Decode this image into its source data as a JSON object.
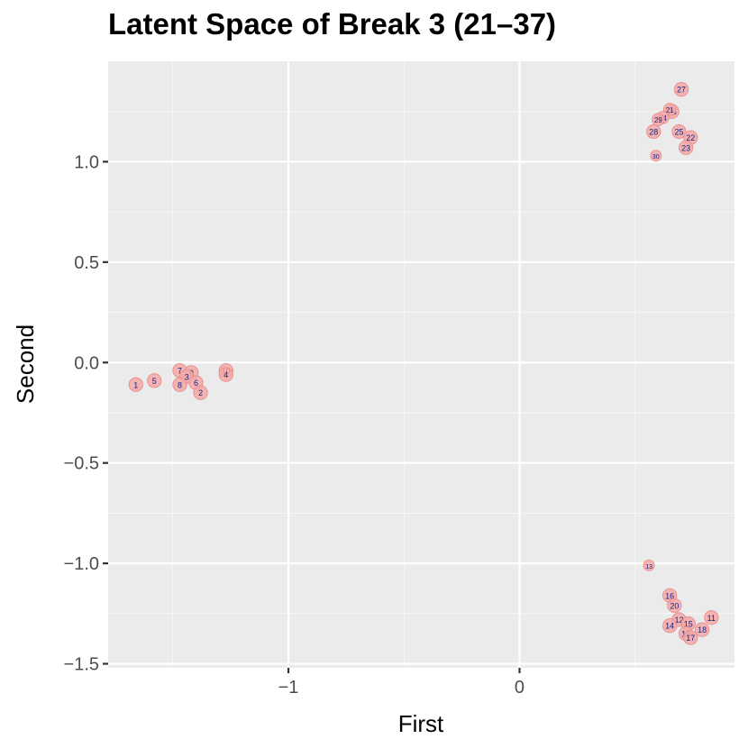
{
  "chart_data": {
    "type": "scatter",
    "title": "Latent Space of Break 3 (21–37)",
    "xlabel": "First",
    "ylabel": "Second",
    "xlim": [
      -1.78,
      0.93
    ],
    "ylim": [
      -1.52,
      1.5
    ],
    "x_ticks": [
      {
        "value": -1,
        "label": "−1"
      },
      {
        "value": 0,
        "label": "0"
      }
    ],
    "y_ticks": [
      {
        "value": -1.5,
        "label": "−1.5"
      },
      {
        "value": -1.0,
        "label": "−1.0"
      },
      {
        "value": -0.5,
        "label": "−0.5"
      },
      {
        "value": 0.0,
        "label": "0.0"
      },
      {
        "value": 0.5,
        "label": "0.5"
      },
      {
        "value": 1.0,
        "label": "1.0"
      }
    ],
    "grid": true,
    "colors": {
      "panel": "#ebebeb",
      "grid_major": "#ffffff",
      "grid_minor": "#f6f6f6",
      "point_fill": "#f4a9a8",
      "point_stroke": "#e9918f",
      "label": "#1a237e"
    },
    "points": [
      {
        "label": "1",
        "x": -1.66,
        "y": -0.11,
        "size": 0.9
      },
      {
        "label": "5",
        "x": -1.58,
        "y": -0.09,
        "size": 0.9
      },
      {
        "label": "7",
        "x": -1.47,
        "y": -0.04,
        "size": 0.9
      },
      {
        "label": "9",
        "x": -1.42,
        "y": -0.05,
        "size": 0.9
      },
      {
        "label": "3",
        "x": -1.44,
        "y": -0.07,
        "size": 0.9
      },
      {
        "label": "8",
        "x": -1.47,
        "y": -0.11,
        "size": 0.9
      },
      {
        "label": "6",
        "x": -1.4,
        "y": -0.1,
        "size": 0.9
      },
      {
        "label": "2",
        "x": -1.38,
        "y": -0.15,
        "size": 0.9
      },
      {
        "label": "10",
        "x": -1.27,
        "y": -0.04,
        "size": 0.9
      },
      {
        "label": "4",
        "x": -1.27,
        "y": -0.06,
        "size": 0.9
      },
      {
        "label": "27",
        "x": 0.7,
        "y": 1.36,
        "size": 0.9
      },
      {
        "label": "26",
        "x": 0.66,
        "y": 1.25,
        "size": 0.9
      },
      {
        "label": "21",
        "x": 0.65,
        "y": 1.26,
        "size": 0.8
      },
      {
        "label": "24",
        "x": 0.62,
        "y": 1.22,
        "size": 0.8
      },
      {
        "label": "29",
        "x": 0.6,
        "y": 1.21,
        "size": 0.8
      },
      {
        "label": "28",
        "x": 0.58,
        "y": 1.15,
        "size": 0.9
      },
      {
        "label": "25",
        "x": 0.69,
        "y": 1.15,
        "size": 0.9
      },
      {
        "label": "22",
        "x": 0.74,
        "y": 1.12,
        "size": 0.9
      },
      {
        "label": "23",
        "x": 0.72,
        "y": 1.07,
        "size": 0.9
      },
      {
        "label": "30",
        "x": 0.59,
        "y": 1.03,
        "size": 0.7
      },
      {
        "label": "13",
        "x": 0.56,
        "y": -1.01,
        "size": 0.7
      },
      {
        "label": "16",
        "x": 0.65,
        "y": -1.16,
        "size": 0.9
      },
      {
        "label": "20",
        "x": 0.67,
        "y": -1.21,
        "size": 0.9
      },
      {
        "label": "12",
        "x": 0.69,
        "y": -1.28,
        "size": 0.9
      },
      {
        "label": "11",
        "x": 0.83,
        "y": -1.27,
        "size": 0.9
      },
      {
        "label": "14",
        "x": 0.65,
        "y": -1.31,
        "size": 0.9
      },
      {
        "label": "15",
        "x": 0.73,
        "y": -1.3,
        "size": 0.9
      },
      {
        "label": "18",
        "x": 0.79,
        "y": -1.33,
        "size": 0.9
      },
      {
        "label": "19",
        "x": 0.72,
        "y": -1.35,
        "size": 0.9
      },
      {
        "label": "17",
        "x": 0.74,
        "y": -1.37,
        "size": 0.9
      }
    ]
  }
}
